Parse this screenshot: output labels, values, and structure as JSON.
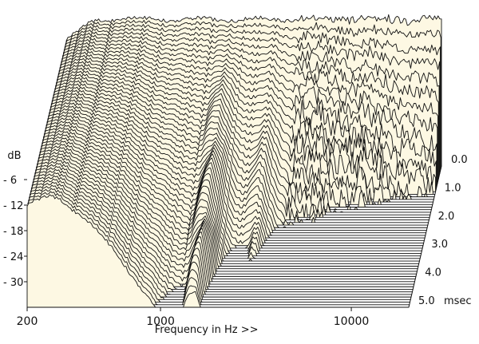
{
  "chart_data": {
    "type": "waterfall",
    "title": "",
    "xlabel": "Frequency in Hz >>",
    "ylabel": "dB",
    "zlabel": "msec",
    "x_scale": "log",
    "xlim": [
      200,
      20000
    ],
    "x_ticks": [
      {
        "value": 200,
        "label": "200"
      },
      {
        "value": 1000,
        "label": "1000"
      },
      {
        "value": 10000,
        "label": "10000"
      }
    ],
    "ylim": [
      -36,
      0
    ],
    "y_ticks": [
      {
        "value": -6,
        "label": "- 6"
      },
      {
        "value": -12,
        "label": "- 12"
      },
      {
        "value": -18,
        "label": "- 18"
      },
      {
        "value": -24,
        "label": "- 24"
      },
      {
        "value": -30,
        "label": "- 30"
      }
    ],
    "z_ticks": [
      {
        "value": 0.0,
        "label": "0.0"
      },
      {
        "value": 1.0,
        "label": "1.0"
      },
      {
        "value": 2.0,
        "label": "2.0"
      },
      {
        "value": 3.0,
        "label": "3.0"
      },
      {
        "value": 4.0,
        "label": "4.0"
      },
      {
        "value": 5.0,
        "label": "5.0"
      }
    ],
    "zlim": [
      0,
      5
    ],
    "slice_count": 56,
    "fill_color": "#fdf8e3",
    "line_color": "#111111"
  }
}
